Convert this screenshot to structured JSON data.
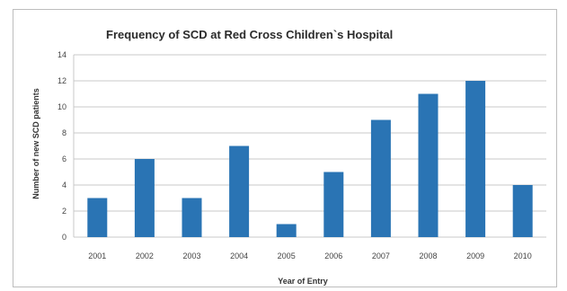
{
  "chart_data": {
    "type": "bar",
    "title": "Frequency of SCD at Red Cross Children`s Hospital",
    "xlabel": "Year of Entry",
    "ylabel": "Number of new SCD patients",
    "categories": [
      "2001",
      "2002",
      "2003",
      "2004",
      "2005",
      "2006",
      "2007",
      "2008",
      "2009",
      "2010"
    ],
    "values": [
      3,
      6,
      3,
      7,
      1,
      5,
      9,
      11,
      12,
      4
    ],
    "ylim": [
      0,
      14
    ],
    "yticks": [
      "0",
      "2",
      "4",
      "6",
      "8",
      "10",
      "12",
      "14"
    ],
    "grid": true,
    "bar_color": "#2a74b4",
    "grid_color": "#c9c9c9"
  }
}
